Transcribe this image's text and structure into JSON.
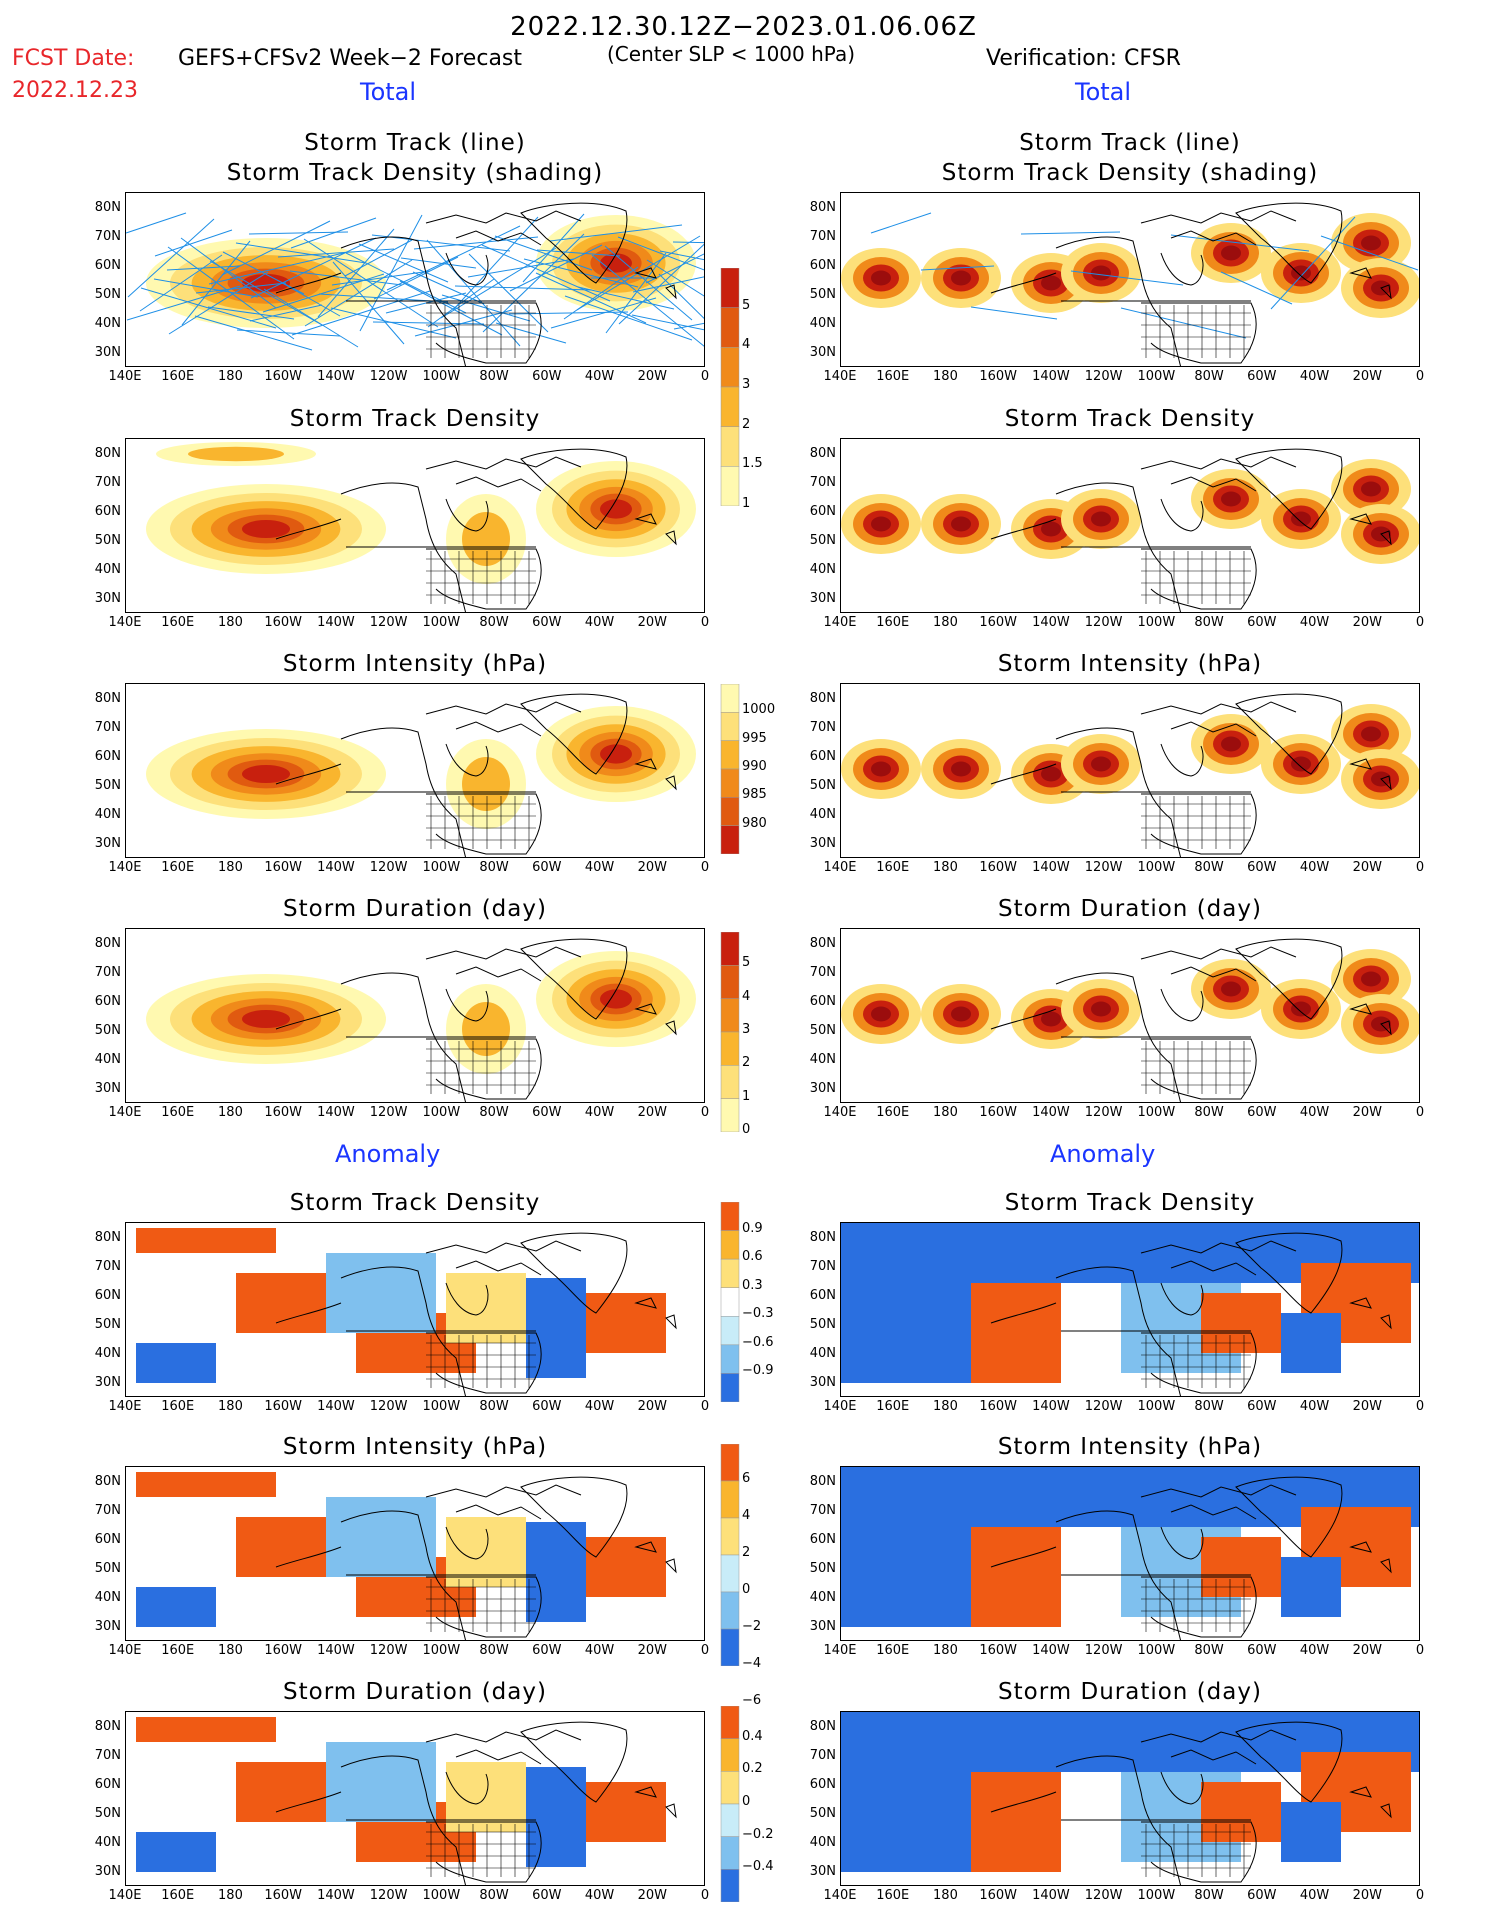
{
  "header": {
    "period": "2022.12.30.12Z−2023.01.06.06Z",
    "fcst_label": "FCST Date:",
    "fcst_date": "2022.12.23",
    "model": "GEFS+CFSv2 Week−2 Forecast",
    "criterion": "(Center SLP < 1000 hPa)",
    "verification": "Verification: CFSR"
  },
  "sections": {
    "total": "Total",
    "anomaly": "Anomaly"
  },
  "panel_titles": {
    "track_line": "Storm Track (line)",
    "track_shading": "Storm Track Density (shading)",
    "density": "Storm Track Density",
    "intensity": "Storm Intensity (hPa)",
    "duration": "Storm Duration (day)"
  },
  "axes": {
    "lat_labels": [
      "80N",
      "70N",
      "60N",
      "50N",
      "40N",
      "30N"
    ],
    "lon_labels": [
      "140E",
      "160E",
      "180",
      "160W",
      "140W",
      "120W",
      "100W",
      "80W",
      "60W",
      "40W",
      "20W",
      "0"
    ]
  },
  "colorbars": {
    "density_total": [
      "5",
      "4",
      "3",
      "2",
      "1.5",
      "1"
    ],
    "intensity_total": [
      "1000",
      "995",
      "990",
      "985",
      "980"
    ],
    "duration_total": [
      "5",
      "4",
      "3",
      "2",
      "1",
      "0"
    ],
    "density_anom": [
      "0.9",
      "0.6",
      "0.3",
      "−0.3",
      "−0.6",
      "−0.9"
    ],
    "intensity_anom": [
      "6",
      "4",
      "2",
      "0",
      "−2",
      "−4",
      "−6"
    ],
    "duration_anom": [
      "0.4",
      "0.2",
      "0",
      "−0.2",
      "−0.4"
    ]
  },
  "colors": {
    "total_scale": [
      "#fff9b0",
      "#fde07a",
      "#f9b52e",
      "#f08a1a",
      "#e05a10",
      "#c8200e",
      "#9b0d0d"
    ],
    "anom_pos": [
      "#fde07a",
      "#f9b52e",
      "#f05a14"
    ],
    "anom_neg": [
      "#c8ecf8",
      "#7fc0ee",
      "#2a6fe0"
    ],
    "track_line": "#1e8fe6"
  },
  "chart_data": {
    "type": "heatmap",
    "domain": {
      "lon": [
        140,
        360
      ],
      "lat": [
        25,
        85
      ]
    },
    "panels": [
      {
        "row": "storm_track",
        "column": "forecast",
        "field": "storm track density + tracks"
      },
      {
        "row": "storm_track",
        "column": "verification",
        "field": "storm track density + tracks"
      },
      {
        "row": "density",
        "column": "forecast",
        "field": "total storm track density"
      },
      {
        "row": "density",
        "column": "verification",
        "field": "total storm track density"
      },
      {
        "row": "intensity",
        "column": "forecast",
        "field": "total storm intensity (hPa)"
      },
      {
        "row": "intensity",
        "column": "verification",
        "field": "total storm intensity (hPa)"
      },
      {
        "row": "duration",
        "column": "forecast",
        "field": "total storm duration (day)"
      },
      {
        "row": "duration",
        "column": "verification",
        "field": "total storm duration (day)"
      },
      {
        "row": "density_anom",
        "column": "forecast",
        "field": "storm track density anomaly"
      },
      {
        "row": "density_anom",
        "column": "verification",
        "field": "storm track density anomaly"
      },
      {
        "row": "intensity_anom",
        "column": "forecast",
        "field": "storm intensity anomaly (hPa)"
      },
      {
        "row": "intensity_anom",
        "column": "verification",
        "field": "storm intensity anomaly (hPa)"
      },
      {
        "row": "duration_anom",
        "column": "forecast",
        "field": "storm duration anomaly (day)"
      },
      {
        "row": "duration_anom",
        "column": "verification",
        "field": "storm duration anomaly (day)"
      }
    ]
  }
}
